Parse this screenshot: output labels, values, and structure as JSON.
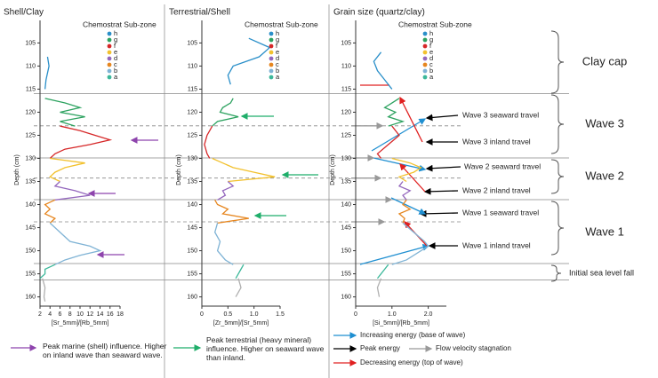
{
  "chart_data": [
    {
      "type": "line",
      "title": "Shell/Clay",
      "legend_title": "Chemostrat Sub-zone",
      "xlabel": "[Sr_5mm]/[Rb_5mm]",
      "ylabel": "Depth (cm)",
      "xlim": [
        2,
        18
      ],
      "xticks": [
        2,
        4,
        6,
        8,
        10,
        12,
        14,
        16,
        18
      ],
      "ylim": [
        103,
        162
      ],
      "yticks": [
        105,
        110,
        115,
        120,
        125,
        130,
        135,
        140,
        145,
        150,
        155,
        160
      ],
      "series": [
        {
          "name": "h",
          "color": "#2a8fc9",
          "depth": [
            108,
            110,
            113,
            115
          ],
          "values": [
            3.5,
            3.8,
            3.2,
            3.0
          ]
        },
        {
          "name": "g",
          "color": "#2ca25f",
          "depth": [
            117,
            118,
            119,
            120,
            121,
            122,
            123
          ],
          "values": [
            3,
            7,
            10,
            6,
            11,
            6,
            9
          ]
        },
        {
          "name": "f",
          "color": "#d62728",
          "depth": [
            123,
            124,
            125,
            126,
            127,
            128,
            129,
            130
          ],
          "values": [
            6,
            10,
            13,
            16,
            12,
            7,
            5,
            4
          ]
        },
        {
          "name": "e",
          "color": "#f2c12e",
          "depth": [
            130,
            131,
            132,
            133,
            134,
            135
          ],
          "values": [
            4,
            11,
            7,
            5,
            4,
            6
          ]
        },
        {
          "name": "d",
          "color": "#9467bd",
          "depth": [
            135,
            136,
            137,
            138,
            139
          ],
          "values": [
            6,
            5,
            9,
            12,
            5
          ]
        },
        {
          "name": "c",
          "color": "#e6861f",
          "depth": [
            139,
            140,
            141,
            142,
            143,
            144
          ],
          "values": [
            5,
            3,
            4,
            3,
            5,
            4
          ]
        },
        {
          "name": "b",
          "color": "#7fb3d5",
          "depth": [
            144,
            146,
            148,
            149,
            150,
            151,
            152,
            153
          ],
          "values": [
            4,
            6,
            8,
            12,
            14,
            10,
            7,
            5
          ]
        },
        {
          "name": "a",
          "color": "#3cb89a",
          "depth": [
            153,
            154,
            155,
            156
          ],
          "values": [
            5,
            3,
            3,
            2
          ]
        },
        {
          "color": "#b0b0b0",
          "depth": [
            156,
            158,
            160,
            161
          ],
          "values": [
            2.5,
            3,
            2.8,
            3
          ]
        }
      ]
    },
    {
      "type": "line",
      "title": "Terrestrial/Shell",
      "legend_title": "Chemostrat Sub-zone",
      "xlabel": "[Zr_5mm]/[Sr_5mm]",
      "ylabel": "Depth (cm)",
      "xlim": [
        0,
        1.5
      ],
      "xticks": [
        0,
        0.5,
        {
          "value": 1,
          "label": "1.0"
        },
        1.5
      ],
      "ylim": [
        103,
        162
      ],
      "yticks": [
        105,
        110,
        115,
        120,
        125,
        130,
        135,
        140,
        145,
        150,
        155,
        160
      ],
      "series": [
        {
          "name": "h",
          "color": "#2a8fc9",
          "depth": [
            104,
            106,
            108,
            110,
            112,
            114
          ],
          "values": [
            0.9,
            1.3,
            1.1,
            0.6,
            0.5,
            0.55
          ]
        },
        {
          "name": "g",
          "color": "#2ca25f",
          "depth": [
            117,
            118,
            119,
            120,
            121,
            122,
            123
          ],
          "values": [
            0.6,
            0.55,
            0.4,
            0.35,
            0.7,
            0.3,
            0.2
          ]
        },
        {
          "name": "f",
          "color": "#d62728",
          "depth": [
            123,
            125,
            127,
            129,
            130
          ],
          "values": [
            0.2,
            0.1,
            0.05,
            0.1,
            0.15
          ]
        },
        {
          "name": "e",
          "color": "#f2c12e",
          "depth": [
            130,
            131,
            132,
            133,
            134,
            135
          ],
          "values": [
            0.2,
            0.4,
            0.6,
            1.0,
            1.4,
            0.5
          ]
        },
        {
          "name": "d",
          "color": "#9467bd",
          "depth": [
            135,
            136,
            137,
            138,
            139
          ],
          "values": [
            0.5,
            0.6,
            0.4,
            0.45,
            0.3
          ]
        },
        {
          "name": "c",
          "color": "#e6861f",
          "depth": [
            139,
            140,
            141,
            142,
            143,
            144
          ],
          "values": [
            0.25,
            0.3,
            0.5,
            0.4,
            0.9,
            0.3
          ]
        },
        {
          "name": "b",
          "color": "#7fb3d5",
          "depth": [
            144,
            146,
            148,
            150,
            152,
            153
          ],
          "values": [
            0.3,
            0.25,
            0.35,
            0.3,
            0.45,
            0.6
          ]
        },
        {
          "name": "a",
          "color": "#3cb89a",
          "depth": [
            153,
            154,
            155,
            156
          ],
          "values": [
            0.8,
            0.75,
            0.7,
            0.65
          ]
        },
        {
          "color": "#b0b0b0",
          "depth": [
            156,
            158,
            160
          ],
          "values": [
            0.7,
            0.75,
            0.65
          ]
        }
      ]
    },
    {
      "type": "line",
      "title": "Grain size (quartz/clay)",
      "legend_title": "Chemostrat Sub-zone",
      "xlabel": "[Si_5mm]/[Rb_5mm]",
      "ylabel": "Depth (cm)",
      "xlim": [
        0,
        2.5
      ],
      "xticks": [
        0,
        {
          "value": 1,
          "label": "1.0"
        },
        {
          "value": 2,
          "label": "2.0"
        }
      ],
      "ylim": [
        103,
        162
      ],
      "yticks": [
        105,
        110,
        115,
        120,
        125,
        130,
        135,
        140,
        145,
        150,
        155,
        160
      ],
      "series": [
        {
          "name": "h",
          "color": "#2a8fc9",
          "depth": [
            107,
            109,
            111,
            113,
            115
          ],
          "values": [
            0.7,
            0.5,
            0.6,
            0.8,
            1.0
          ]
        },
        {
          "name": "g",
          "color": "#2ca25f",
          "depth": [
            117,
            118,
            119,
            120,
            121,
            122,
            123
          ],
          "values": [
            1.2,
            1.0,
            0.8,
            1.1,
            0.9,
            1.3,
            0.9
          ]
        },
        {
          "name": "f",
          "color": "#d62728",
          "depth": [
            123,
            125,
            127,
            129,
            130
          ],
          "values": [
            1.0,
            1.2,
            0.9,
            0.6,
            0.7
          ]
        },
        {
          "name": "e",
          "color": "#f2c12e",
          "depth": [
            130,
            131,
            132,
            133,
            134,
            135
          ],
          "values": [
            1.0,
            1.5,
            1.8,
            1.6,
            1.2,
            1.4
          ]
        },
        {
          "name": "d",
          "color": "#9467bd",
          "depth": [
            135,
            136,
            137,
            138,
            139
          ],
          "values": [
            1.3,
            1.2,
            1.5,
            1.3,
            1.4
          ]
        },
        {
          "name": "c",
          "color": "#e6861f",
          "depth": [
            139,
            140,
            141,
            142,
            143,
            144
          ],
          "values": [
            1.4,
            1.3,
            1.5,
            1.2,
            1.35,
            1.3
          ]
        },
        {
          "name": "b",
          "color": "#7fb3d5",
          "depth": [
            144,
            146,
            148,
            149,
            150,
            152,
            153
          ],
          "values": [
            1.3,
            1.6,
            1.9,
            2.0,
            1.8,
            1.4,
            1.0
          ]
        },
        {
          "name": "a",
          "color": "#3cb89a",
          "depth": [
            153,
            154,
            155,
            156
          ],
          "values": [
            0.9,
            0.8,
            0.7,
            0.6
          ]
        },
        {
          "color": "#b0b0b0",
          "depth": [
            156,
            158,
            160
          ],
          "values": [
            0.7,
            0.6,
            0.65
          ]
        }
      ]
    }
  ],
  "zones": [
    "Clay cap",
    "Wave 3",
    "Wave 2",
    "Wave 1",
    "Initial sea level fall"
  ],
  "travel_labels": [
    "Wave 3 seaward travel",
    "Wave 3 inland travel",
    "Wave 2 seaward travel",
    "Wave 2 inland travel",
    "Wave 1 seaward travel",
    "Wave 1 inland travel"
  ],
  "notes": [
    "Peak marine (shell) influence. Higher on inland wave than seaward wave.",
    "Peak terrestrial (heavy mineral) influence. Higher on seaward wave than inland."
  ],
  "arrow_legend": [
    "Increasing energy (base of wave)",
    "Peak energy",
    "Flow velocity stagnation",
    "Decreasing energy (top of wave)"
  ]
}
